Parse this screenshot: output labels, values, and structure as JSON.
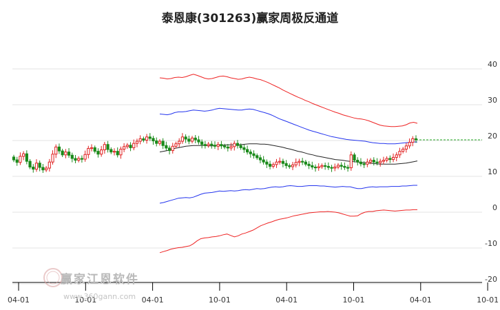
{
  "chart_data": {
    "type": "line",
    "title": "泰恩康(301263)赢家周极反通道",
    "ylim": [
      -21,
      45
    ],
    "y_ticks": [
      40,
      30,
      20,
      10,
      0,
      -10,
      -20
    ],
    "x_tick_labels": [
      "04-01",
      "10-01",
      "04-01",
      "10-01",
      "04-01",
      "10-01",
      "04-01",
      "10-01"
    ],
    "grid": "horizontal",
    "colors": {
      "candle_up": "#e02020",
      "candle_down": "#1a8a1a",
      "outer_band": "#ee2222",
      "inner_band": "#2233ee",
      "middle_line": "#222222",
      "last_price_line": "#22aa22",
      "grid": "#e3e3e3"
    },
    "last_price": 20.2,
    "candles_close": [
      14.6,
      13.9,
      15.6,
      16.3,
      14.2,
      12.6,
      12.0,
      13.7,
      12.5,
      11.8,
      12.3,
      14.0,
      16.2,
      18.2,
      17.1,
      16.0,
      16.8,
      15.9,
      15.0,
      14.5,
      15.0,
      14.8,
      16.1,
      17.8,
      18.0,
      17.0,
      16.2,
      17.4,
      18.9,
      17.5,
      16.8,
      17.0,
      16.0,
      17.6,
      18.3,
      18.7,
      18.0,
      19.2,
      19.8,
      20.5,
      20.1,
      21.0,
      20.6,
      19.9,
      19.2,
      19.8,
      18.6,
      17.9,
      17.2,
      18.4,
      19.1,
      19.8,
      21.0,
      20.4,
      19.8,
      20.7,
      20.2,
      19.6,
      18.9,
      18.6,
      19.0,
      18.7,
      18.4,
      18.9,
      18.5,
      18.2,
      17.9,
      18.3,
      19.2,
      18.6,
      18.0,
      17.5,
      16.8,
      16.3,
      15.8,
      15.2,
      14.6,
      14.0,
      13.4,
      12.8,
      13.3,
      14.0,
      14.2,
      13.6,
      13.0,
      12.7,
      13.2,
      13.9,
      14.2,
      14.0,
      13.4,
      13.0,
      12.6,
      12.4,
      12.7,
      13.0,
      12.8,
      12.5,
      12.3,
      12.6,
      13.1,
      12.8,
      12.5,
      12.4,
      16.0,
      14.5,
      14.0,
      13.5,
      13.4,
      14.0,
      14.5,
      14.0,
      13.8,
      14.2,
      14.5,
      15.0,
      14.7,
      15.3,
      16.0,
      17.0,
      17.6,
      18.5,
      19.5,
      20.5,
      20.2
    ],
    "series": [
      {
        "name": "",
        "role": "outer-upper",
        "values": [
          37.5,
          37.4,
          37.2,
          37.3,
          37.6,
          37.7,
          37.6,
          37.8,
          38.2,
          38.5,
          38.2,
          37.8,
          37.4,
          37.2,
          37.3,
          37.6,
          37.9,
          38.0,
          37.8,
          37.5,
          37.3,
          37.1,
          37.2,
          37.5,
          37.7,
          37.5,
          37.2,
          37.0,
          36.6,
          36.2,
          35.7,
          35.2,
          34.7,
          34.1,
          33.6,
          33.1,
          32.6,
          32.1,
          31.7,
          31.2,
          30.8,
          30.3,
          29.9,
          29.5,
          29.1,
          28.7,
          28.3,
          27.9,
          27.6,
          27.2,
          26.9,
          26.6,
          26.3,
          26.1,
          26.0,
          25.8,
          25.5,
          25.1,
          24.7,
          24.3,
          24.1,
          24.0,
          23.9,
          23.9,
          24.0,
          24.1,
          24.4,
          24.9,
          25.1,
          24.8
        ]
      },
      {
        "name": "",
        "role": "inner-upper",
        "values": [
          27.4,
          27.3,
          27.2,
          27.4,
          27.8,
          28.0,
          28.0,
          28.1,
          28.3,
          28.5,
          28.4,
          28.3,
          28.2,
          28.3,
          28.5,
          28.8,
          29.0,
          28.9,
          28.8,
          28.7,
          28.6,
          28.5,
          28.5,
          28.7,
          28.8,
          28.7,
          28.4,
          28.1,
          27.8,
          27.5,
          27.1,
          26.6,
          26.1,
          25.7,
          25.3,
          24.9,
          24.5,
          24.1,
          23.7,
          23.3,
          22.9,
          22.6,
          22.3,
          22.0,
          21.7,
          21.4,
          21.1,
          20.9,
          20.7,
          20.5,
          20.3,
          20.2,
          20.1,
          20.0,
          19.9,
          19.8,
          19.6,
          19.4,
          19.3,
          19.2,
          19.2,
          19.1,
          19.1,
          19.1,
          19.2,
          19.3,
          19.4,
          19.5,
          19.6,
          19.6
        ]
      },
      {
        "name": "",
        "role": "middle",
        "values": [
          16.8,
          17.0,
          17.2,
          17.5,
          17.8,
          18.0,
          18.2,
          18.4,
          18.5,
          18.6,
          18.6,
          18.6,
          18.6,
          18.5,
          18.5,
          18.6,
          18.7,
          18.7,
          18.8,
          18.8,
          18.8,
          18.8,
          18.9,
          19.0,
          19.1,
          19.1,
          19.1,
          19.0,
          19.0,
          18.9,
          18.7,
          18.5,
          18.3,
          18.1,
          17.8,
          17.6,
          17.3,
          17.0,
          16.8,
          16.5,
          16.2,
          16.0,
          15.7,
          15.5,
          15.3,
          15.1,
          14.9,
          14.7,
          14.6,
          14.5,
          14.3,
          14.2,
          14.1,
          14.0,
          13.9,
          13.8,
          13.7,
          13.6,
          13.5,
          13.4,
          13.4,
          13.4,
          13.4,
          13.4,
          13.5,
          13.6,
          13.7,
          13.9,
          14.1,
          14.3
        ]
      },
      {
        "name": "",
        "role": "inner-lower",
        "values": [
          2.5,
          2.7,
          3.0,
          3.3,
          3.6,
          3.9,
          4.0,
          4.1,
          4.0,
          4.2,
          4.6,
          5.0,
          5.3,
          5.4,
          5.5,
          5.7,
          5.9,
          5.8,
          5.9,
          6.0,
          5.9,
          6.0,
          6.2,
          6.3,
          6.2,
          6.4,
          6.6,
          6.5,
          6.6,
          6.8,
          7.0,
          7.1,
          7.0,
          7.1,
          7.3,
          7.4,
          7.3,
          7.2,
          7.2,
          7.3,
          7.4,
          7.4,
          7.4,
          7.3,
          7.3,
          7.2,
          7.1,
          7.0,
          7.1,
          7.2,
          7.1,
          7.1,
          6.8,
          6.6,
          6.6,
          6.8,
          7.0,
          7.1,
          7.0,
          7.1,
          7.1,
          7.1,
          7.2,
          7.2,
          7.2,
          7.3,
          7.3,
          7.4,
          7.5,
          7.5
        ]
      },
      {
        "name": "",
        "role": "outer-lower",
        "values": [
          -11.3,
          -11.0,
          -10.7,
          -10.3,
          -10.1,
          -9.9,
          -9.8,
          -9.6,
          -9.4,
          -8.8,
          -8.0,
          -7.4,
          -7.2,
          -7.1,
          -6.9,
          -6.8,
          -6.6,
          -6.3,
          -6.1,
          -6.5,
          -6.9,
          -6.6,
          -6.1,
          -5.8,
          -5.4,
          -5.0,
          -4.4,
          -3.8,
          -3.4,
          -3.0,
          -2.7,
          -2.3,
          -2.0,
          -1.8,
          -1.6,
          -1.3,
          -1.0,
          -0.8,
          -0.6,
          -0.4,
          -0.2,
          -0.1,
          0.0,
          0.1,
          0.1,
          0.2,
          0.1,
          0.0,
          -0.2,
          -0.5,
          -0.8,
          -1.1,
          -1.1,
          -1.0,
          -0.4,
          0.0,
          0.2,
          0.2,
          0.4,
          0.5,
          0.6,
          0.5,
          0.4,
          0.3,
          0.4,
          0.5,
          0.6,
          0.6,
          0.7,
          0.7
        ]
      }
    ]
  },
  "watermark": {
    "name": "赢家江恩软件",
    "url": "www.360gann.com",
    "seal_text": "赢家江恩"
  }
}
